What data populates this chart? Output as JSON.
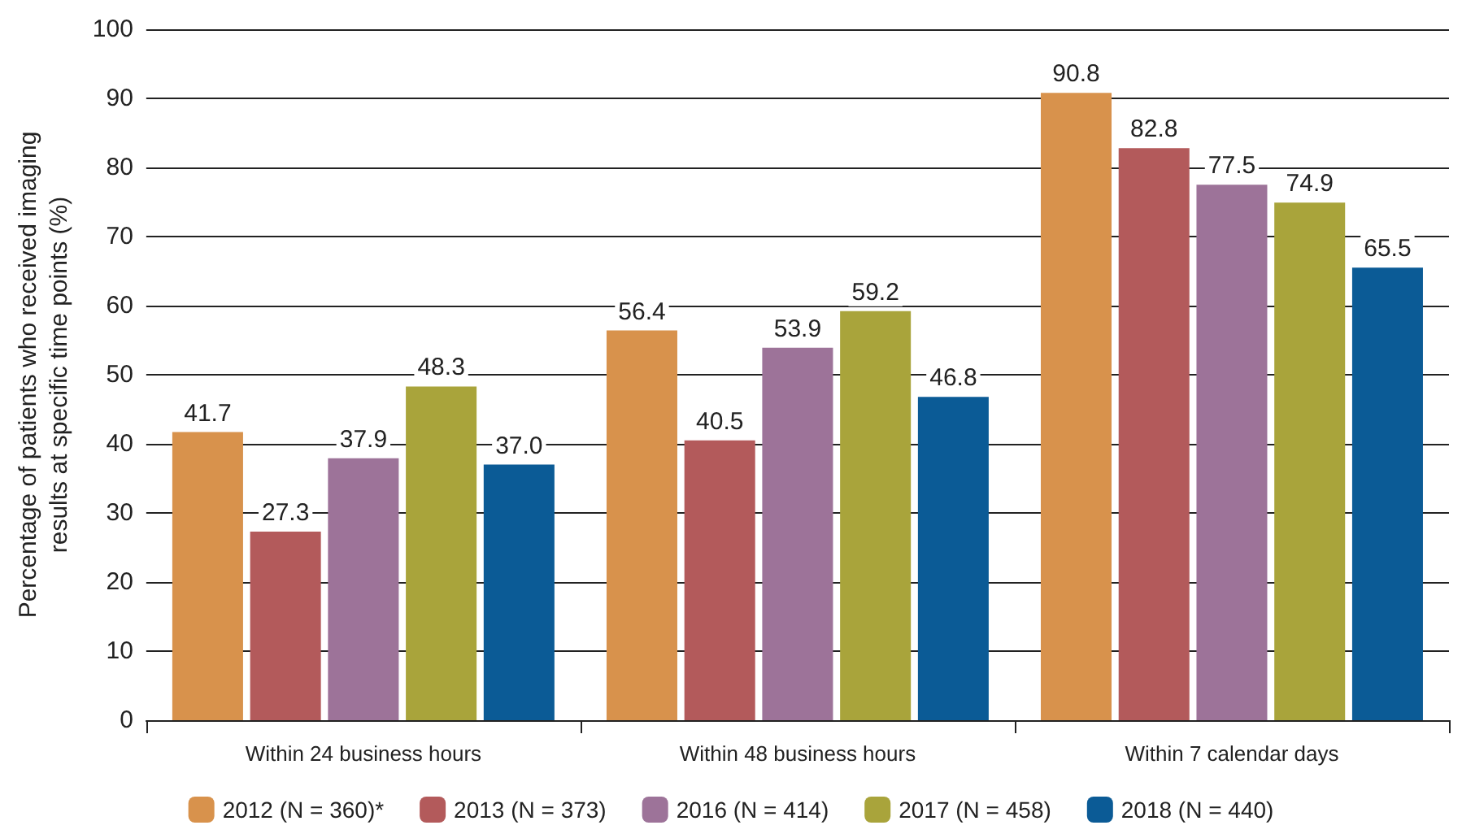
{
  "chart_data": {
    "type": "bar",
    "ylabel": "Percentage of patients who received imaging results at specific time points (%)",
    "categories": [
      "Within 24 business hours",
      "Within 48 business hours",
      "Within 7 calendar days"
    ],
    "series": [
      {
        "name": "2012 (N = 360)*",
        "color": "#d8924c",
        "values": [
          41.7,
          56.4,
          90.8
        ],
        "value_labels": [
          "41.7",
          "56.4",
          "90.8"
        ]
      },
      {
        "name": "2013 (N = 373)",
        "color": "#b35a5b",
        "values": [
          27.3,
          40.5,
          82.8
        ],
        "value_labels": [
          "27.3",
          "40.5",
          "82.8"
        ]
      },
      {
        "name": "2016 (N = 414)",
        "color": "#9d7399",
        "values": [
          37.9,
          53.9,
          77.5
        ],
        "value_labels": [
          "37.9",
          "53.9",
          "77.5"
        ]
      },
      {
        "name": "2017 (N = 458)",
        "color": "#a9a43b",
        "values": [
          48.3,
          59.2,
          74.9
        ],
        "value_labels": [
          "48.3",
          "59.2",
          "74.9"
        ]
      },
      {
        "name": "2018 (N = 440)",
        "color": "#0b5b96",
        "values": [
          37.0,
          46.8,
          65.5
        ],
        "value_labels": [
          "37.0",
          "46.8",
          "65.5"
        ]
      }
    ],
    "ylim": [
      0,
      100
    ],
    "yticks": [
      0,
      10,
      20,
      30,
      40,
      50,
      60,
      70,
      80,
      90,
      100
    ],
    "grid": "y",
    "legend": "bottom"
  }
}
